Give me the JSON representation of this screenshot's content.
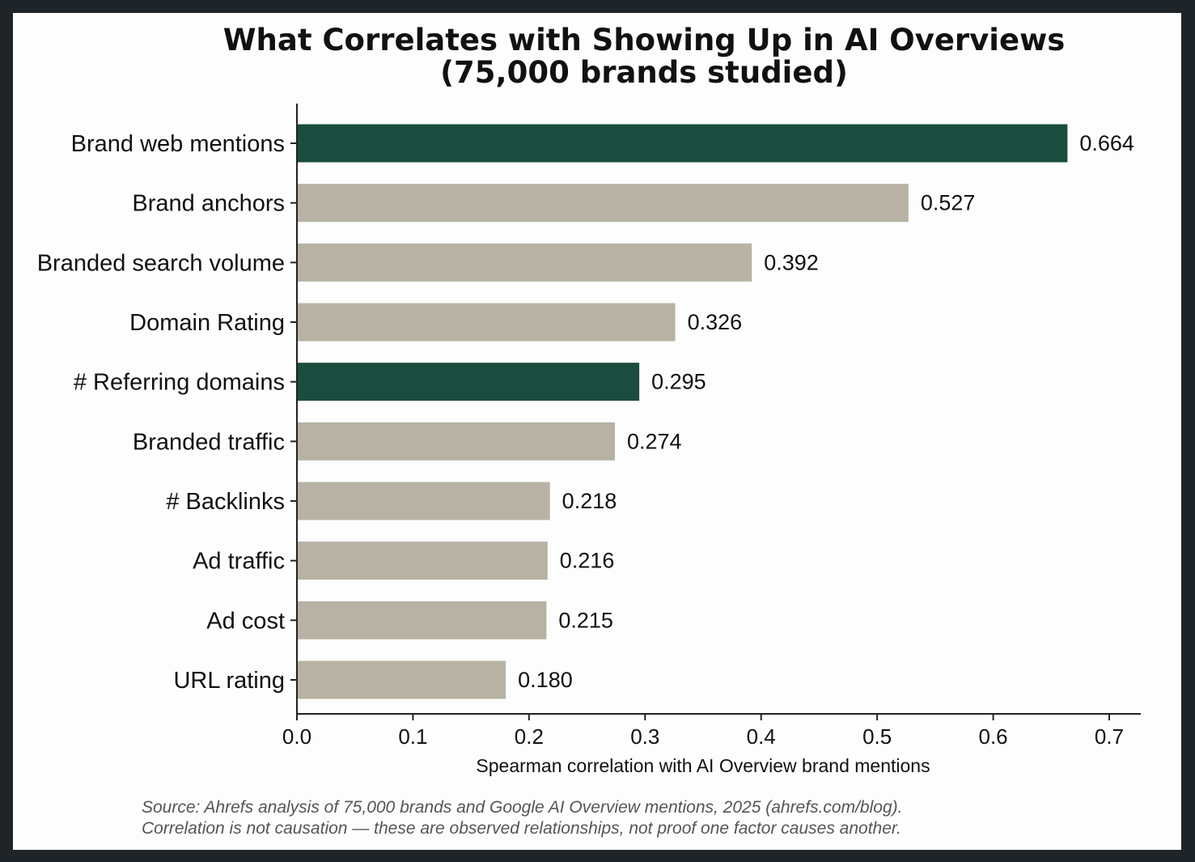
{
  "chart_data": {
    "type": "bar",
    "orientation": "horizontal",
    "title_lines": [
      "What Correlates with Showing Up in AI Overviews",
      "(75,000 brands studied)"
    ],
    "categories": [
      "Brand web mentions",
      "Brand anchors",
      "Branded search volume",
      "Domain Rating",
      "# Referring domains",
      "Branded traffic",
      "# Backlinks",
      "Ad traffic",
      "Ad cost",
      "URL rating"
    ],
    "values": [
      0.664,
      0.527,
      0.392,
      0.326,
      0.295,
      0.274,
      0.218,
      0.216,
      0.215,
      0.18
    ],
    "value_labels": [
      "0.664",
      "0.527",
      "0.392",
      "0.326",
      "0.295",
      "0.274",
      "0.218",
      "0.216",
      "0.215",
      "0.180"
    ],
    "highlighted": [
      "Brand web mentions",
      "# Referring domains"
    ],
    "xlabel": "Spearman correlation with AI Overview brand mentions",
    "ylabel": "",
    "xlim": [
      0,
      0.73
    ],
    "xticks": [
      0.0,
      0.1,
      0.2,
      0.3,
      0.4,
      0.5,
      0.6,
      0.7
    ],
    "xtick_labels": [
      "0.0",
      "0.1",
      "0.2",
      "0.3",
      "0.4",
      "0.5",
      "0.6",
      "0.7"
    ],
    "grid": false,
    "colors": {
      "highlight": "#1b4d3e",
      "default": "#b7b2a3"
    }
  },
  "source_lines": [
    "Source: Ahrefs analysis of 75,000 brands and Google AI Overview mentions, 2025 (ahrefs.com/blog).",
    "Correlation is not causation — these are observed relationships, not proof one factor causes another."
  ]
}
